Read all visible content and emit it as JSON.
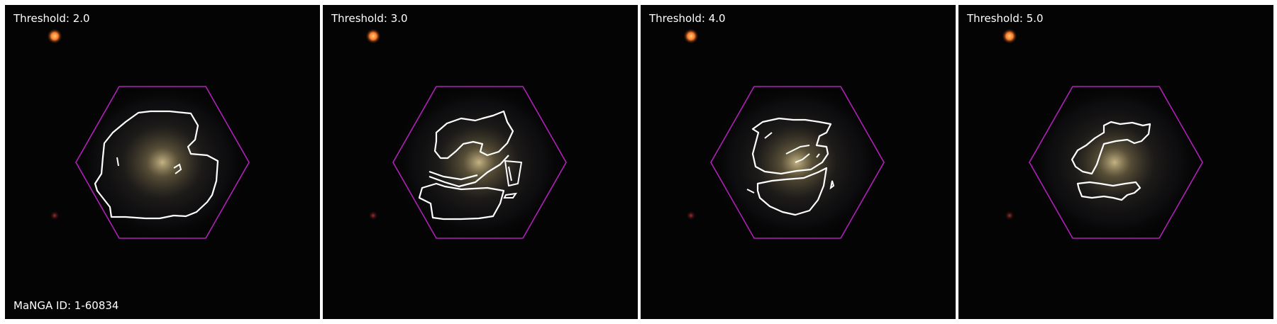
{
  "panels": [
    {
      "label": "Threshold: 2.0",
      "id_label": "MaNGA ID: 1-60834"
    },
    {
      "label": "Threshold: 3.0"
    },
    {
      "label": "Threshold: 4.0"
    },
    {
      "label": "Threshold: 5.0"
    }
  ],
  "colors": {
    "hexagon": "#b020b8",
    "contour": "#ffffff",
    "background": "#050404",
    "star": "#ff8c3a",
    "galaxy_core": "#e8d6a0"
  }
}
